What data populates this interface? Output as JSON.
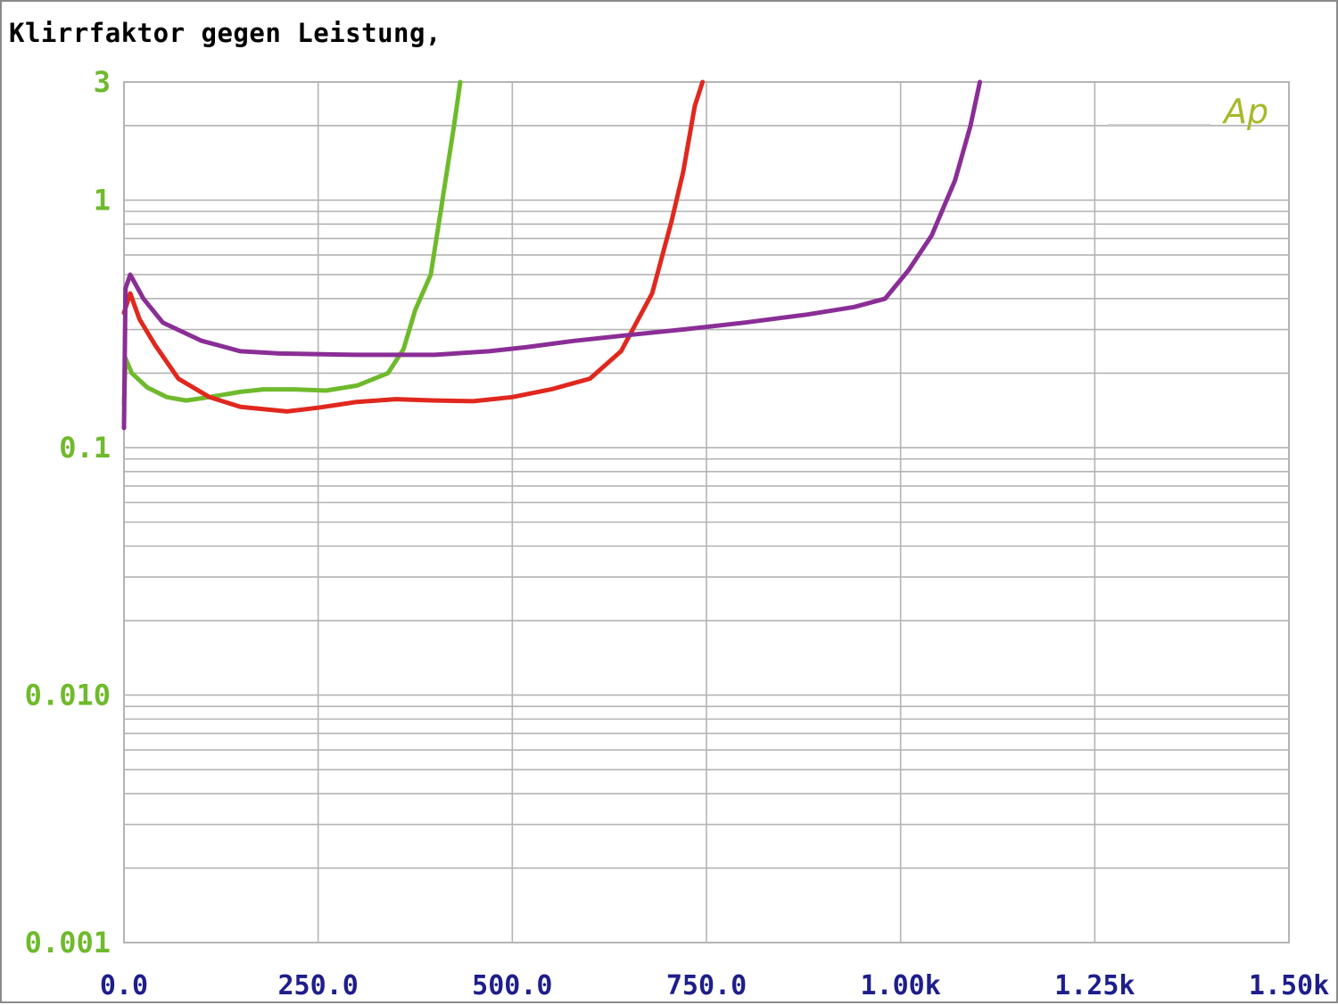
{
  "chart_data": {
    "type": "line",
    "title": "Klirrfaktor gegen Leistung,",
    "xlabel": "",
    "ylabel": "",
    "x_scale": "linear",
    "y_scale": "log",
    "xlim": [
      0,
      1500
    ],
    "ylim": [
      0.001,
      3
    ],
    "grid": true,
    "x_tick_labels": [
      "0.0",
      "250.0",
      "500.0",
      "750.0",
      "1.00k",
      "1.25k",
      "1.50k"
    ],
    "x_tick_values": [
      0,
      250,
      500,
      750,
      1000,
      1250,
      1500
    ],
    "y_tick_labels": [
      "3",
      "1",
      "0.1",
      "0.010",
      "0.001"
    ],
    "y_tick_values": [
      3,
      1,
      0.1,
      0.01,
      0.001
    ],
    "watermark": "Ap",
    "colors": {
      "axis_labels": "#1e1e8c",
      "y_labels": "#6fba2c",
      "grid": "#b4b4b4",
      "watermark": "#a8b82a"
    },
    "series": [
      {
        "color": "#6fba2c",
        "points": [
          [
            0,
            0.15
          ],
          [
            2,
            0.23
          ],
          [
            10,
            0.2
          ],
          [
            30,
            0.175
          ],
          [
            55,
            0.16
          ],
          [
            80,
            0.155
          ],
          [
            110,
            0.16
          ],
          [
            150,
            0.168
          ],
          [
            180,
            0.172
          ],
          [
            220,
            0.172
          ],
          [
            260,
            0.17
          ],
          [
            300,
            0.178
          ],
          [
            340,
            0.2
          ],
          [
            360,
            0.25
          ],
          [
            375,
            0.36
          ],
          [
            395,
            0.5
          ],
          [
            410,
            1.0
          ],
          [
            425,
            2.0
          ],
          [
            433,
            3.0
          ]
        ]
      },
      {
        "color": "#e0281e",
        "points": [
          [
            0,
            0.35
          ],
          [
            8,
            0.42
          ],
          [
            20,
            0.33
          ],
          [
            40,
            0.26
          ],
          [
            70,
            0.19
          ],
          [
            110,
            0.16
          ],
          [
            150,
            0.146
          ],
          [
            210,
            0.14
          ],
          [
            250,
            0.145
          ],
          [
            300,
            0.153
          ],
          [
            350,
            0.157
          ],
          [
            400,
            0.155
          ],
          [
            450,
            0.154
          ],
          [
            500,
            0.16
          ],
          [
            550,
            0.172
          ],
          [
            600,
            0.19
          ],
          [
            640,
            0.245
          ],
          [
            680,
            0.42
          ],
          [
            705,
            0.82
          ],
          [
            720,
            1.3
          ],
          [
            735,
            2.4
          ],
          [
            745,
            3.0
          ]
        ]
      },
      {
        "color": "#8a2e96",
        "points": [
          [
            0,
            0.12
          ],
          [
            2,
            0.44
          ],
          [
            8,
            0.5
          ],
          [
            25,
            0.4
          ],
          [
            50,
            0.32
          ],
          [
            100,
            0.27
          ],
          [
            150,
            0.245
          ],
          [
            200,
            0.24
          ],
          [
            300,
            0.237
          ],
          [
            400,
            0.237
          ],
          [
            470,
            0.245
          ],
          [
            520,
            0.255
          ],
          [
            580,
            0.27
          ],
          [
            650,
            0.285
          ],
          [
            720,
            0.3
          ],
          [
            800,
            0.32
          ],
          [
            880,
            0.345
          ],
          [
            940,
            0.37
          ],
          [
            980,
            0.4
          ],
          [
            1010,
            0.52
          ],
          [
            1040,
            0.72
          ],
          [
            1070,
            1.2
          ],
          [
            1090,
            2.0
          ],
          [
            1102,
            3.0
          ]
        ]
      }
    ]
  }
}
